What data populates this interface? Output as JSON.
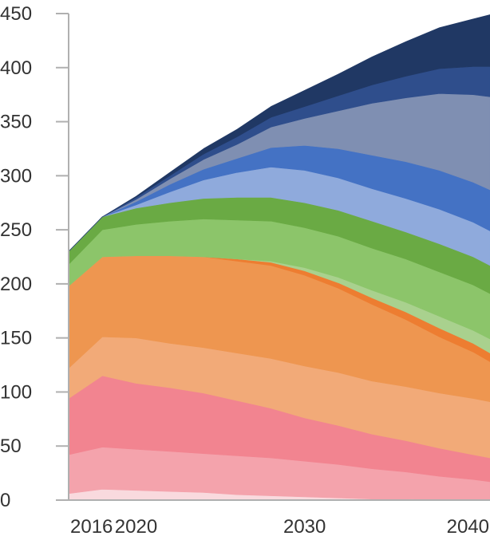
{
  "chart_data": {
    "type": "area",
    "stacked": true,
    "x": [
      2016,
      2018,
      2020,
      2022,
      2024,
      2026,
      2028,
      2030,
      2032,
      2034,
      2036,
      2038,
      2040,
      2041
    ],
    "x_ticks": [
      "2016",
      "2020",
      "2030",
      "2040"
    ],
    "y_ticks": [
      "0",
      "50",
      "100",
      "150",
      "200",
      "250",
      "300",
      "350",
      "400",
      "450"
    ],
    "ylim": [
      0,
      450
    ],
    "xlim": [
      2016,
      2041
    ],
    "grid": false,
    "legend": "none",
    "series": [
      {
        "color": "#f9dade",
        "values": [
          6,
          10,
          9,
          8,
          7,
          5,
          4,
          3,
          2,
          1,
          1,
          0,
          0,
          0
        ]
      },
      {
        "color": "#f4a3ac",
        "values": [
          36,
          39,
          38,
          37,
          36,
          36,
          35,
          33,
          31,
          28,
          25,
          22,
          19,
          17
        ]
      },
      {
        "color": "#f28490",
        "values": [
          52,
          66,
          61,
          59,
          56,
          51,
          46,
          40,
          36,
          32,
          29,
          26,
          23,
          22
        ]
      },
      {
        "color": "#f2aa78",
        "values": [
          28,
          36,
          42,
          41,
          42,
          44,
          46,
          48,
          49,
          49,
          50,
          51,
          52,
          52
        ]
      },
      {
        "color": "#ee9650",
        "values": [
          76,
          74,
          76,
          81,
          84,
          85,
          86,
          84,
          78,
          71,
          62,
          52,
          43,
          37
        ]
      },
      {
        "color": "#ed7d31",
        "values": [
          0,
          0,
          0,
          0,
          0,
          2,
          3,
          4,
          5,
          6,
          7,
          8,
          8,
          8
        ]
      },
      {
        "color": "#a9d18e",
        "values": [
          0,
          0,
          0,
          0,
          0,
          0,
          1,
          3,
          5,
          7,
          9,
          11,
          12,
          13
        ]
      },
      {
        "color": "#8cc56a",
        "values": [
          20,
          25,
          29,
          32,
          35,
          36,
          37,
          37,
          38,
          39,
          40,
          41,
          42,
          42
        ]
      },
      {
        "color": "#6aaa44",
        "values": [
          12,
          12,
          15,
          17,
          19,
          21,
          22,
          23,
          24,
          25,
          25,
          26,
          26,
          26
        ]
      },
      {
        "color": "#8faadc",
        "values": [
          0,
          0,
          3,
          10,
          17,
          23,
          28,
          30,
          30,
          30,
          31,
          32,
          32,
          32
        ]
      },
      {
        "color": "#4472c4",
        "values": [
          0,
          0,
          3,
          7,
          10,
          13,
          18,
          23,
          27,
          31,
          34,
          36,
          37,
          38
        ]
      },
      {
        "color": "#7f8fb2",
        "values": [
          0,
          0,
          2,
          5,
          9,
          13,
          19,
          25,
          35,
          48,
          59,
          71,
          81,
          86
        ]
      },
      {
        "color": "#2f4e8c",
        "values": [
          0,
          0,
          2,
          3,
          5,
          7,
          9,
          11,
          14,
          17,
          20,
          23,
          26,
          28
        ]
      },
      {
        "color": "#203864",
        "values": [
          0,
          0,
          1,
          3,
          5,
          7,
          10,
          15,
          20,
          26,
          32,
          38,
          44,
          48
        ]
      }
    ]
  }
}
